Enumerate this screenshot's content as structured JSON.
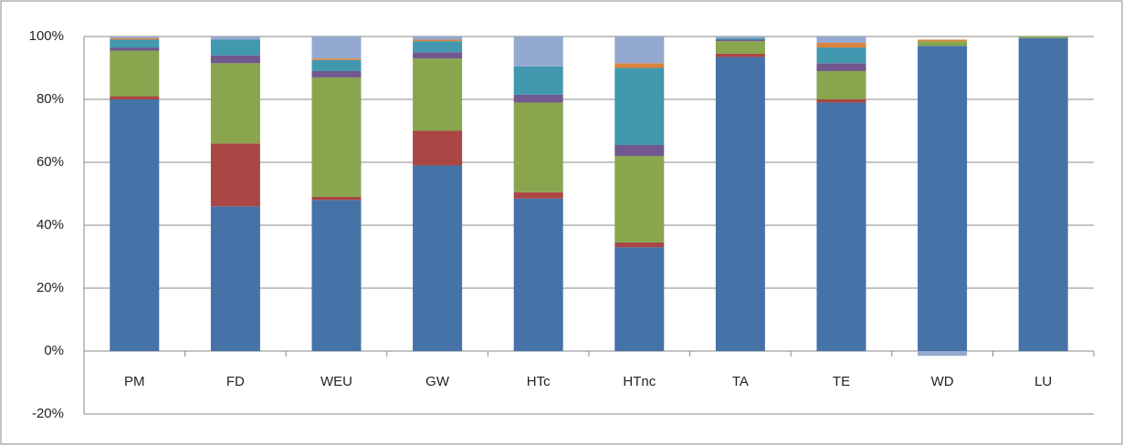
{
  "chart_data": {
    "type": "stacked_bar",
    "categories": [
      "PM",
      "FD",
      "WEU",
      "GW",
      "HTc",
      "HTnc",
      "TA",
      "TE",
      "WD",
      "LU"
    ],
    "series": [
      {
        "color": "#4572a7",
        "values": [
          80,
          46,
          48,
          59,
          48.5,
          33,
          93.5,
          79,
          97,
          99.5
        ]
      },
      {
        "color": "#aa4643",
        "values": [
          1,
          20,
          1,
          11,
          2,
          1.5,
          1,
          1,
          0,
          0
        ]
      },
      {
        "color": "#89a54e",
        "values": [
          14.5,
          25.5,
          38,
          23,
          28.5,
          27.5,
          4,
          9,
          1.5,
          0.5
        ]
      },
      {
        "color": "#71588f",
        "values": [
          1,
          2.5,
          2,
          2,
          2.5,
          3.5,
          0.5,
          2.5,
          0,
          0
        ]
      },
      {
        "color": "#4198af",
        "values": [
          2.5,
          5,
          3.5,
          3.5,
          9,
          24.5,
          0.5,
          5,
          0,
          0
        ]
      },
      {
        "color": "#db843d",
        "values": [
          0.5,
          0,
          0.5,
          0.5,
          0,
          1.5,
          0,
          1.5,
          0.5,
          0
        ]
      },
      {
        "color": "#93a9cf",
        "values": [
          0.5,
          1,
          7,
          1,
          9.5,
          8.5,
          0.5,
          2,
          -1.5,
          0
        ]
      }
    ],
    "ylim": [
      -20,
      100
    ],
    "yticks": [
      {
        "value": -20,
        "label": "-20%"
      },
      {
        "value": 0,
        "label": "0%"
      },
      {
        "value": 20,
        "label": "20%"
      },
      {
        "value": 40,
        "label": "40%"
      },
      {
        "value": 60,
        "label": "60%"
      },
      {
        "value": 80,
        "label": "80%"
      },
      {
        "value": 100,
        "label": "100%"
      }
    ],
    "grid": true
  }
}
